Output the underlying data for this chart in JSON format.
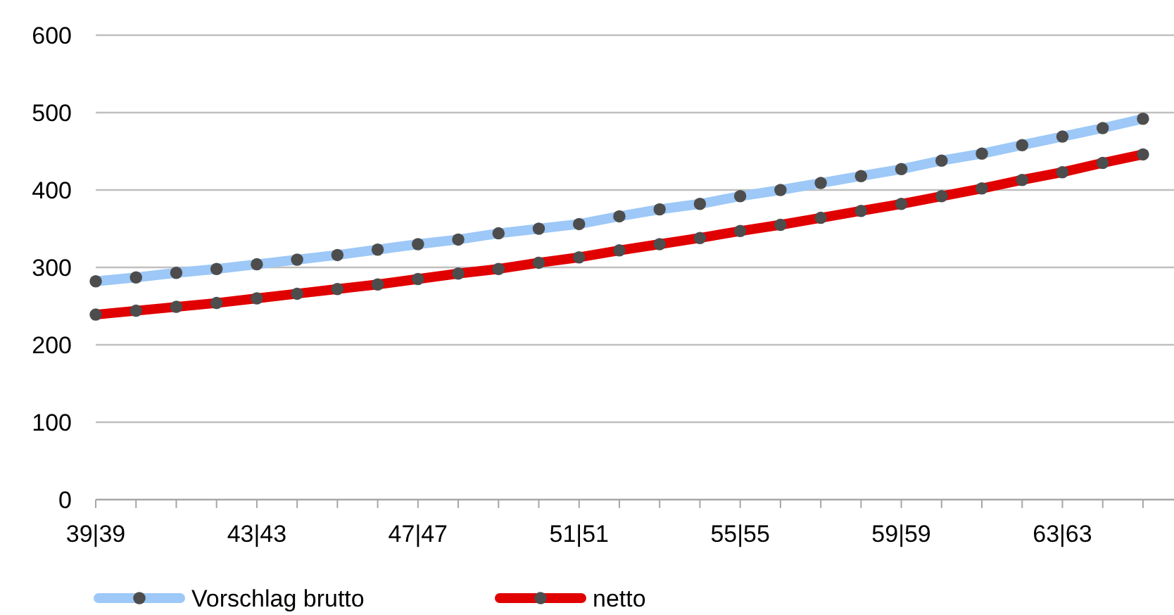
{
  "chart_data": {
    "type": "line",
    "categories": [
      "39|39",
      null,
      null,
      null,
      "43|43",
      null,
      null,
      null,
      "47|47",
      null,
      null,
      null,
      "51|51",
      null,
      null,
      null,
      "55|55",
      null,
      null,
      null,
      "59|59",
      null,
      null,
      null,
      "63|63",
      null,
      null
    ],
    "series": [
      {
        "name": "Vorschlag brutto",
        "color": "#9dc8f7",
        "values": [
          282,
          287,
          293,
          298,
          304,
          310,
          316,
          323,
          330,
          336,
          344,
          350,
          356,
          366,
          375,
          382,
          392,
          400,
          409,
          418,
          427,
          438,
          447,
          458,
          469,
          480,
          492
        ]
      },
      {
        "name": "netto",
        "color": "#e00000",
        "values": [
          239,
          244,
          249,
          254,
          260,
          266,
          272,
          278,
          285,
          292,
          298,
          306,
          313,
          322,
          330,
          338,
          347,
          355,
          364,
          373,
          382,
          392,
          402,
          413,
          423,
          435,
          446
        ]
      }
    ],
    "ylim": [
      0,
      600
    ],
    "yticks": [
      0,
      100,
      200,
      300,
      400,
      500,
      600
    ],
    "grid": "y",
    "legend": "bottom",
    "marker": "circle"
  }
}
